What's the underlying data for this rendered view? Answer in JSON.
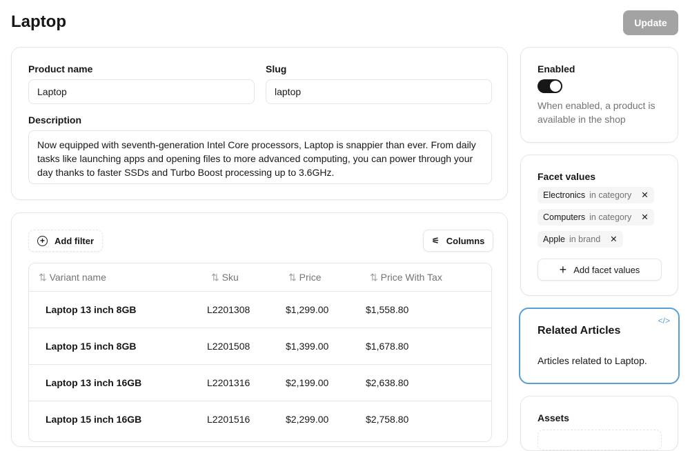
{
  "page": {
    "title": "Laptop",
    "update_label": "Update"
  },
  "product": {
    "name_label": "Product name",
    "name_value": "Laptop",
    "slug_label": "Slug",
    "slug_value": "laptop",
    "description_label": "Description",
    "description_value": "Now equipped with seventh-generation Intel Core processors, Laptop is snappier than ever. From daily tasks like launching apps and opening files to more advanced computing, you can power through your day thanks to faster SSDs and Turbo Boost processing up to 3.6GHz."
  },
  "variants": {
    "add_filter": "Add filter",
    "columns": "Columns",
    "headers": [
      "Variant name",
      "Sku",
      "Price",
      "Price With Tax"
    ],
    "rows": [
      {
        "name": "Laptop 13 inch 8GB",
        "sku": "L2201308",
        "price": "$1,299.00",
        "price_tax": "$1,558.80"
      },
      {
        "name": "Laptop 15 inch 8GB",
        "sku": "L2201508",
        "price": "$1,399.00",
        "price_tax": "$1,678.80"
      },
      {
        "name": "Laptop 13 inch 16GB",
        "sku": "L2201316",
        "price": "$2,199.00",
        "price_tax": "$2,638.80"
      },
      {
        "name": "Laptop 15 inch 16GB",
        "sku": "L2201516",
        "price": "$2,299.00",
        "price_tax": "$2,758.80"
      }
    ]
  },
  "enabled": {
    "label": "Enabled",
    "on": true,
    "help": "When enabled, a product is available in the shop"
  },
  "facets": {
    "title": "Facet values",
    "items": [
      {
        "name": "Electronics",
        "group": "in category"
      },
      {
        "name": "Computers",
        "group": "in category"
      },
      {
        "name": "Apple",
        "group": "in brand"
      }
    ],
    "add_label": "Add facet values"
  },
  "related": {
    "title": "Related Articles",
    "text": "Articles related to Laptop.",
    "accent": "#5a9fd4"
  },
  "assets": {
    "title": "Assets"
  }
}
